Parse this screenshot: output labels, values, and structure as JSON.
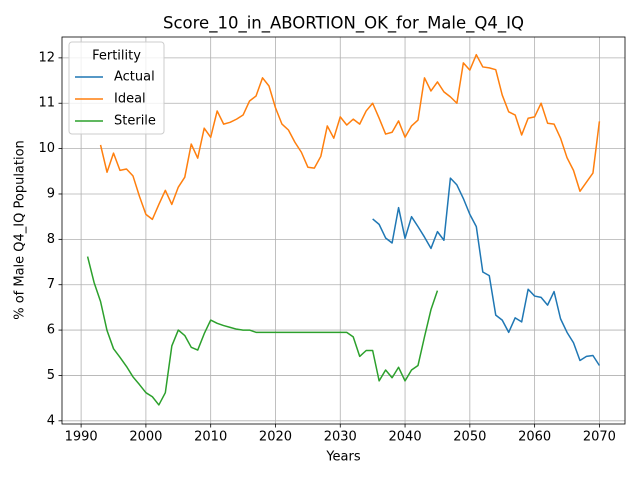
{
  "chart_data": {
    "type": "line",
    "title": "Score_10_in_ABORTION_OK_for_Male_Q4_IQ",
    "x_label": "Years",
    "y_label": "% of Male Q4_IQ Population",
    "legend_title": "Fertility",
    "legend_position": "upper left",
    "grid": true,
    "x": [
      1991,
      1992,
      1993,
      1994,
      1995,
      1996,
      1997,
      1998,
      1999,
      2000,
      2001,
      2002,
      2003,
      2004,
      2005,
      2006,
      2007,
      2008,
      2009,
      2010,
      2011,
      2012,
      2013,
      2014,
      2015,
      2016,
      2017,
      2018,
      2019,
      2020,
      2021,
      2022,
      2023,
      2024,
      2025,
      2026,
      2027,
      2028,
      2029,
      2030,
      2031,
      2032,
      2033,
      2034,
      2035,
      2036,
      2037,
      2038,
      2039,
      2040,
      2041,
      2042,
      2043,
      2044,
      2045,
      2046,
      2047,
      2048,
      2049,
      2050,
      2051,
      2052,
      2053,
      2054,
      2055,
      2056,
      2057,
      2058,
      2059,
      2060,
      2061,
      2062,
      2063,
      2064,
      2065,
      2066,
      2067,
      2068,
      2069,
      2070
    ],
    "series": [
      {
        "name": "Actual",
        "color": "#1f77b4",
        "values": [
          null,
          null,
          null,
          null,
          null,
          null,
          null,
          null,
          null,
          null,
          null,
          null,
          null,
          null,
          null,
          null,
          null,
          null,
          null,
          null,
          null,
          null,
          null,
          null,
          null,
          null,
          null,
          null,
          null,
          null,
          null,
          null,
          null,
          null,
          null,
          null,
          null,
          null,
          null,
          null,
          null,
          null,
          null,
          null,
          8.45,
          8.33,
          8.03,
          7.92,
          8.7,
          8.02,
          8.5,
          8.28,
          8.05,
          7.8,
          8.17,
          7.98,
          9.35,
          9.2,
          8.9,
          8.55,
          8.28,
          7.28,
          7.2,
          6.33,
          6.22,
          5.95,
          6.27,
          6.18,
          6.9,
          6.75,
          6.72,
          6.55,
          6.85,
          6.25,
          5.95,
          5.72,
          5.33,
          5.42,
          5.44,
          5.22
        ]
      },
      {
        "name": "Ideal",
        "color": "#ff7f0e",
        "values": [
          null,
          null,
          10.08,
          9.48,
          9.9,
          9.52,
          9.55,
          9.4,
          8.95,
          8.55,
          8.44,
          8.77,
          9.08,
          8.77,
          9.15,
          9.37,
          10.1,
          9.79,
          10.45,
          10.25,
          10.83,
          10.54,
          10.58,
          10.65,
          10.74,
          11.05,
          11.16,
          11.56,
          11.38,
          10.9,
          10.54,
          10.41,
          10.14,
          9.92,
          9.59,
          9.57,
          9.83,
          10.5,
          10.23,
          10.7,
          10.52,
          10.65,
          10.54,
          10.83,
          11.0,
          10.67,
          10.32,
          10.36,
          10.61,
          10.25,
          10.5,
          10.63,
          11.56,
          11.27,
          11.47,
          11.25,
          11.14,
          11.0,
          11.89,
          11.73,
          12.07,
          11.8,
          11.78,
          11.74,
          11.18,
          10.81,
          10.74,
          10.3,
          10.67,
          10.7,
          11.0,
          10.56,
          10.54,
          10.23,
          9.8,
          9.52,
          9.06,
          9.26,
          9.46,
          10.6
        ]
      },
      {
        "name": "Sterile",
        "color": "#2ca02c",
        "values": [
          7.62,
          7.05,
          6.63,
          5.99,
          5.59,
          5.4,
          5.2,
          4.97,
          4.8,
          4.62,
          4.53,
          4.35,
          4.62,
          5.65,
          6.0,
          5.88,
          5.62,
          5.56,
          5.92,
          6.22,
          6.15,
          6.1,
          6.06,
          6.02,
          6.0,
          6.0,
          5.95,
          5.95,
          5.95,
          5.95,
          5.95,
          5.95,
          5.95,
          5.95,
          5.95,
          5.95,
          5.95,
          5.95,
          5.95,
          5.95,
          5.95,
          5.85,
          5.42,
          5.55,
          5.55,
          4.88,
          5.12,
          4.95,
          5.18,
          4.88,
          5.12,
          5.22,
          5.85,
          6.45,
          6.87,
          null,
          null,
          null,
          null,
          null,
          null,
          null,
          null,
          null,
          null,
          null,
          null,
          null,
          null,
          null,
          null,
          null,
          null,
          null,
          null,
          null,
          null,
          null,
          null,
          null
        ]
      }
    ],
    "xlim": [
      1987.05,
      2073.95
    ],
    "ylim": [
      3.93,
      12.46
    ],
    "xticks": [
      1990,
      2000,
      2010,
      2020,
      2030,
      2040,
      2050,
      2060,
      2070
    ],
    "yticks": [
      4,
      5,
      6,
      7,
      8,
      9,
      10,
      11,
      12
    ]
  }
}
